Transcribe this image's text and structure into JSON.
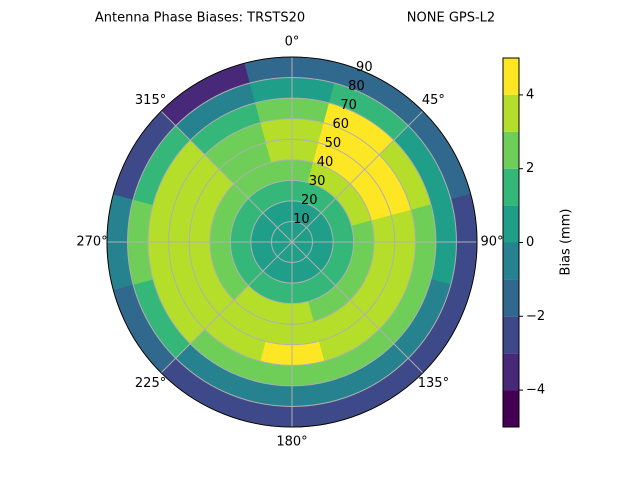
{
  "chart_data": {
    "type": "polar-contour",
    "title": "Antenna Phase Biases: TRSTS20",
    "subtitle": "NONE GPS-L2",
    "colorbar_label": "Bias (mm)",
    "azimuths": [
      0,
      30,
      60,
      90,
      120,
      150,
      180,
      210,
      240,
      270,
      300,
      330
    ],
    "zeniths": [
      5,
      15,
      25,
      35,
      45,
      55,
      65,
      75,
      85
    ],
    "values": [
      [
        0,
        0,
        1,
        2,
        3,
        3,
        2,
        0,
        -2
      ],
      [
        0,
        0,
        1,
        3,
        4,
        4.5,
        4,
        1,
        -2
      ],
      [
        0,
        0,
        1,
        3,
        4,
        4.5,
        3,
        0,
        -2
      ],
      [
        0,
        0,
        1,
        2,
        3,
        3,
        2,
        0,
        -3
      ],
      [
        0,
        0,
        1,
        2,
        3,
        3,
        2,
        -1,
        -3
      ],
      [
        0,
        0,
        1,
        2,
        3,
        3,
        2,
        -1,
        -3
      ],
      [
        0,
        0,
        1,
        3,
        3,
        4,
        2,
        -1,
        -3
      ],
      [
        0,
        0,
        1,
        3,
        3,
        3,
        2,
        -1,
        -3
      ],
      [
        0,
        0,
        1,
        2,
        3,
        3,
        3,
        1,
        -2
      ],
      [
        0,
        0,
        1,
        2,
        3,
        3,
        3,
        2,
        -1
      ],
      [
        0,
        0,
        1,
        2,
        3,
        3,
        3,
        1,
        -3
      ],
      [
        0,
        0,
        1,
        2,
        2,
        2,
        1,
        -1,
        -4
      ]
    ],
    "levels": [
      -5,
      -4,
      -3,
      -2,
      -1,
      0,
      1,
      2,
      3,
      4,
      5
    ],
    "colors": [
      "#440154",
      "#482878",
      "#3e4989",
      "#31688e",
      "#26828e",
      "#1f9e89",
      "#35b779",
      "#6ece58",
      "#b5de2b",
      "#fde725"
    ],
    "rlim": [
      0,
      90
    ],
    "rticks": [
      10,
      20,
      30,
      40,
      50,
      60,
      70,
      80,
      90
    ],
    "thetaticks": [
      {
        "value": 0,
        "label": "0°"
      },
      {
        "value": 45,
        "label": "45°"
      },
      {
        "value": 90,
        "label": "90°"
      },
      {
        "value": 135,
        "label": "135°"
      },
      {
        "value": 180,
        "label": "180°"
      },
      {
        "value": 225,
        "label": "225°"
      },
      {
        "value": 270,
        "label": "270°"
      },
      {
        "value": 315,
        "label": "315°"
      }
    ],
    "cticks": [
      {
        "value": -4,
        "label": "−4"
      },
      {
        "value": -2,
        "label": "−2"
      },
      0,
      2,
      4
    ],
    "grid": true
  }
}
